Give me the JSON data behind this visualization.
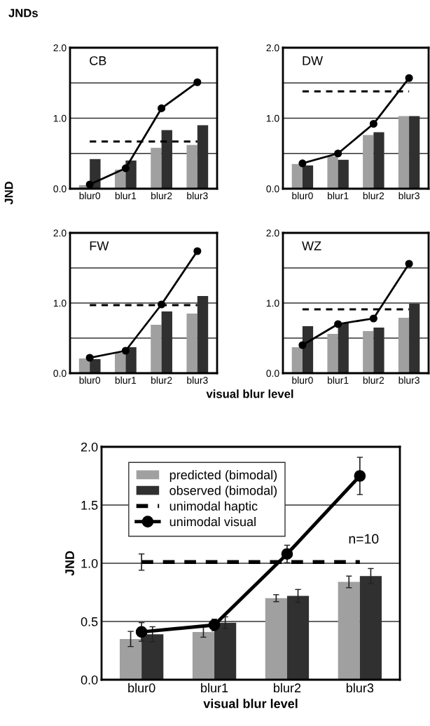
{
  "chart_data": [
    {
      "type": "bar",
      "title": "CB",
      "annotations": [
        "JNDs"
      ],
      "ylabel": "JND",
      "categories": [
        "blur0",
        "blur1",
        "blur2",
        "blur3"
      ],
      "ylim": [
        0,
        2
      ],
      "yticks": [
        {
          "value": 0,
          "label": "0.0"
        },
        {
          "value": 0.5,
          "label": null
        },
        {
          "value": 1,
          "label": "1.0"
        },
        {
          "value": 1.5,
          "label": null
        },
        {
          "value": 2,
          "label": "2.0"
        }
      ],
      "grid": "y",
      "series": [
        {
          "type": "bar",
          "color": "#a0a0a0",
          "values": [
            0.05,
            0.27,
            0.58,
            0.62
          ]
        },
        {
          "type": "bar",
          "color": "#303030",
          "values": [
            0.42,
            0.4,
            0.83,
            0.9
          ]
        },
        {
          "type": "line",
          "color": "#000000",
          "line_style": "dashed",
          "marker": "none",
          "values": [
            0.67,
            0.67,
            0.67,
            0.67
          ]
        },
        {
          "type": "line",
          "color": "#000000",
          "line_style": "solid",
          "marker": "circle",
          "values": [
            0.06,
            0.29,
            1.14,
            1.51
          ]
        }
      ]
    },
    {
      "type": "bar",
      "title": "DW",
      "categories": [
        "blur0",
        "blur1",
        "blur2",
        "blur3"
      ],
      "ylim": [
        0,
        2
      ],
      "yticks": [
        {
          "value": 0,
          "label": "0.0"
        },
        {
          "value": 0.5,
          "label": null
        },
        {
          "value": 1,
          "label": "1.0"
        },
        {
          "value": 1.5,
          "label": null
        },
        {
          "value": 2,
          "label": "2.0"
        }
      ],
      "grid": "y",
      "series": [
        {
          "type": "bar",
          "color": "#a0a0a0",
          "values": [
            0.35,
            0.46,
            0.76,
            1.03
          ]
        },
        {
          "type": "bar",
          "color": "#303030",
          "values": [
            0.33,
            0.41,
            0.8,
            1.03
          ]
        },
        {
          "type": "line",
          "color": "#000000",
          "line_style": "dashed",
          "marker": "none",
          "values": [
            1.38,
            1.38,
            1.38,
            1.38
          ]
        },
        {
          "type": "line",
          "color": "#000000",
          "line_style": "solid",
          "marker": "circle",
          "values": [
            0.36,
            0.5,
            0.92,
            1.57
          ]
        }
      ]
    },
    {
      "type": "bar",
      "title": "FW",
      "xlabel": "visual blur level",
      "categories": [
        "blur0",
        "blur1",
        "blur2",
        "blur3"
      ],
      "ylim": [
        0,
        2
      ],
      "yticks": [
        {
          "value": 0,
          "label": "0.0"
        },
        {
          "value": 0.5,
          "label": null
        },
        {
          "value": 1,
          "label": "1.0"
        },
        {
          "value": 1.5,
          "label": null
        },
        {
          "value": 2,
          "label": "2.0"
        }
      ],
      "grid": "y",
      "series": [
        {
          "type": "bar",
          "color": "#a0a0a0",
          "values": [
            0.21,
            0.29,
            0.69,
            0.85
          ]
        },
        {
          "type": "bar",
          "color": "#303030",
          "values": [
            0.2,
            0.37,
            0.88,
            1.1
          ]
        },
        {
          "type": "line",
          "color": "#000000",
          "line_style": "dashed",
          "marker": "none",
          "values": [
            0.97,
            0.97,
            0.97,
            0.97
          ]
        },
        {
          "type": "line",
          "color": "#000000",
          "line_style": "solid",
          "marker": "circle",
          "values": [
            0.22,
            0.32,
            0.98,
            1.74
          ]
        }
      ]
    },
    {
      "type": "bar",
      "title": "WZ",
      "categories": [
        "blur0",
        "blur1",
        "blur2",
        "blur3"
      ],
      "ylim": [
        0,
        2
      ],
      "yticks": [
        {
          "value": 0,
          "label": "0.0"
        },
        {
          "value": 0.5,
          "label": null
        },
        {
          "value": 1,
          "label": "1.0"
        },
        {
          "value": 1.5,
          "label": null
        },
        {
          "value": 2,
          "label": "2.0"
        }
      ],
      "grid": "y",
      "series": [
        {
          "type": "bar",
          "color": "#a0a0a0",
          "values": [
            0.37,
            0.56,
            0.6,
            0.79
          ]
        },
        {
          "type": "bar",
          "color": "#303030",
          "values": [
            0.67,
            0.72,
            0.65,
            0.99
          ]
        },
        {
          "type": "line",
          "color": "#000000",
          "line_style": "dashed",
          "marker": "none",
          "values": [
            0.91,
            0.91,
            0.91,
            0.91
          ]
        },
        {
          "type": "line",
          "color": "#000000",
          "line_style": "solid",
          "marker": "circle",
          "values": [
            0.4,
            0.7,
            0.78,
            1.56
          ]
        }
      ]
    },
    {
      "type": "bar",
      "xlabel": "visual blur level",
      "ylabel": "JND",
      "annotations": [
        "n=10"
      ],
      "legend": "top left",
      "categories": [
        "blur0",
        "blur1",
        "blur2",
        "blur3"
      ],
      "ylim": [
        0,
        2
      ],
      "yticks": [
        {
          "value": 0,
          "label": "0.0"
        },
        {
          "value": 0.5,
          "label": "0.5"
        },
        {
          "value": 1,
          "label": "1.0"
        },
        {
          "value": 1.5,
          "label": "1.5"
        },
        {
          "value": 2,
          "label": "2.0"
        }
      ],
      "grid": "y",
      "series": [
        {
          "type": "bar",
          "name": "predicted (bimodal)",
          "color": "#a0a0a0",
          "values": [
            0.35,
            0.41,
            0.7,
            0.84
          ],
          "errors": [
            0.065,
            0.045,
            0.03,
            0.05
          ]
        },
        {
          "type": "bar",
          "name": "observed (bimodal)",
          "color": "#303030",
          "values": [
            0.39,
            0.49,
            0.72,
            0.89
          ],
          "errors": [
            0.065,
            0.05,
            0.055,
            0.065
          ]
        },
        {
          "type": "line",
          "name": "unimodal haptic",
          "color": "#000000",
          "line_style": "dashed",
          "marker": "none",
          "values": [
            1.01,
            1.01,
            1.01,
            1.01
          ],
          "errors": [
            0.07,
            null,
            null,
            null
          ]
        },
        {
          "type": "line",
          "name": "unimodal visual",
          "color": "#000000",
          "line_style": "solid",
          "marker": "circle",
          "values": [
            0.41,
            0.47,
            1.08,
            1.75
          ],
          "errors": [
            0.08,
            0.05,
            0.075,
            0.16
          ]
        }
      ]
    }
  ]
}
